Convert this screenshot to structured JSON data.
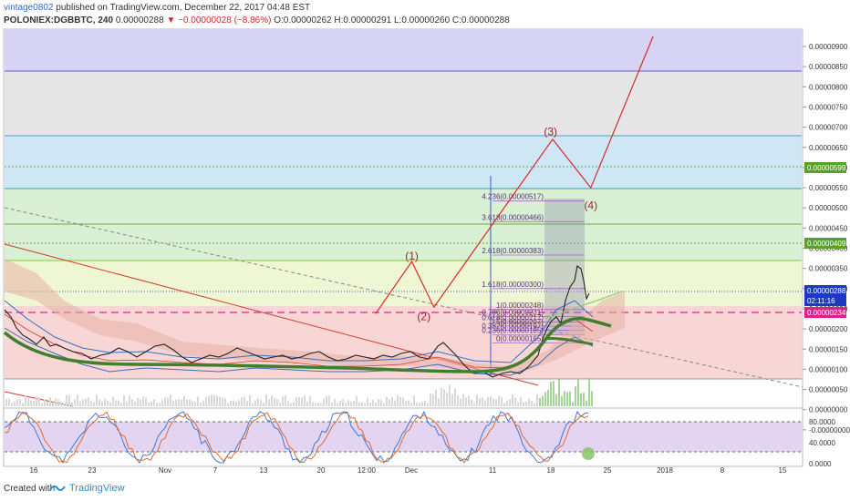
{
  "header": {
    "user": "vintage0802",
    "published": "published on TradingView.com, December 22, 2017 04:48 EST",
    "symbol": "POLONIEX:DGBBTC, 240",
    "last": "0.00000288",
    "change": "▼ −0.00000028 (−8.86%)",
    "ohlc": "O:0.00000262 H:0.00000291 L:0.00000260 C:0.00000288"
  },
  "footer": {
    "created": "Created with",
    "brand": "TradingView"
  },
  "chart_data": {
    "type": "line",
    "price_scale": {
      "ylim": [
        0,
        9.3e-06
      ],
      "ticks": [
        "0.00000900",
        "0.00000850",
        "0.00000800",
        "0.00000750",
        "0.00000700",
        "0.00000650",
        "0.00000600",
        "0.00000550",
        "0.00000500",
        "0.00000450",
        "0.00000400",
        "0.00000350",
        "0.00000300",
        "0.00000250",
        "0.00000200",
        "0.00000150",
        "0.00000100",
        "0.00000050",
        "0.00000000",
        "-0.00000000"
      ]
    },
    "x_ticks": [
      "16",
      "23",
      "Nov",
      "7",
      "13",
      "20",
      "12:00",
      "Dec",
      "11",
      "18",
      "25",
      "2018",
      "8",
      "15"
    ],
    "price_labels": {
      "target": "0.00000599",
      "level": "0.00000409",
      "current": "0.00000288",
      "countdown": "02:11:16",
      "dashed": "0.00000234"
    },
    "fib_labels": [
      {
        "text": "4.236(0.00000517)",
        "value": 5.17e-06
      },
      {
        "text": "3.618(0.00000466)",
        "value": 4.66e-06
      },
      {
        "text": "2.618(0.00000383)",
        "value": 3.83e-06
      },
      {
        "text": "1.618(0.00000300)",
        "value": 3e-06
      },
      {
        "text": "1(0.00000248)",
        "value": 2.48e-06
      },
      {
        "text": "0.786(0.00000231)",
        "value": 2.31e-06
      },
      {
        "text": "0.618(0.00000217)",
        "value": 2.17e-06
      },
      {
        "text": "0.5(0.00000207)",
        "value": 2.07e-06
      },
      {
        "text": "0.382(0.00000197)",
        "value": 1.97e-06
      },
      {
        "text": "0.236(0.00000185)",
        "value": 1.85e-06
      },
      {
        "text": "0(0.00000165)",
        "value": 1.65e-06
      }
    ],
    "wave_labels": [
      {
        "text": "(1)",
        "x": 18.8,
        "y": 3.72e-06
      },
      {
        "text": "(2)",
        "x": 19.4,
        "y": 2.22e-06
      },
      {
        "text": "(3)",
        "x": 25.7,
        "y": 6.8e-06
      },
      {
        "text": "(4)",
        "x": 27.7,
        "y": 4.97e-06
      }
    ],
    "wave_path": [
      {
        "x": 17.0,
        "y": 2.38e-06
      },
      {
        "x": 18.8,
        "y": 3.67e-06
      },
      {
        "x": 19.9,
        "y": 2.54e-06
      },
      {
        "x": 25.8,
        "y": 6.7e-06
      },
      {
        "x": 27.7,
        "y": 5.5e-06
      },
      {
        "x": 30.8,
        "y": 9.25e-06
      }
    ],
    "stoch": {
      "ylim": [
        0,
        100
      ],
      "ticks": [
        "80.0000",
        "40.0000",
        "0.0000"
      ],
      "upper": 80,
      "lower": 20
    }
  }
}
